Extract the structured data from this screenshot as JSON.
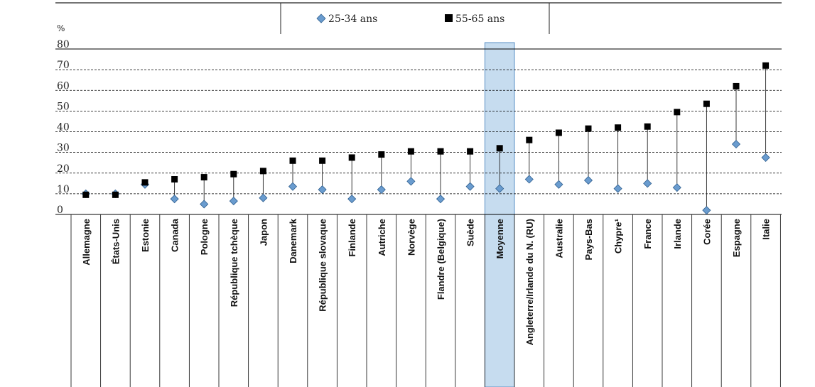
{
  "chart_data": {
    "type": "scatter",
    "ylabel": "%",
    "ylim": [
      0,
      80
    ],
    "yticks": [
      0,
      10,
      20,
      30,
      40,
      50,
      60,
      70,
      80
    ],
    "grid": "dashed horizontal",
    "legend_position": "top-center",
    "highlight_category": "Moyenne",
    "categories": [
      "Allemagne",
      "États-Unis",
      "Estonie",
      "Canada",
      "Pologne",
      "République tchèque",
      "Japon",
      "Danemark",
      "République slovaque",
      "Finlande",
      "Autriche",
      "Norvège",
      "Flandre (Belgique)",
      "Suède",
      "Moyenne",
      "Angleterre/Irlande du N. (RU)",
      "Australie",
      "Pays-Bas",
      "Chypre¹",
      "France",
      "Irlande",
      "Corée",
      "Espagne",
      "Italie"
    ],
    "series": [
      {
        "name": "25-34 ans",
        "marker": "diamond",
        "color": "#6a9ccf",
        "values": [
          10,
          10,
          14.5,
          7.5,
          5,
          6.5,
          8,
          13.5,
          12,
          7.5,
          12,
          16,
          7.5,
          13.5,
          12.5,
          17,
          14.5,
          16.5,
          12.5,
          15,
          13,
          2,
          34,
          27.5
        ]
      },
      {
        "name": "55-65 ans",
        "marker": "square",
        "color": "#000000",
        "values": [
          9.5,
          9.5,
          15.5,
          17,
          18,
          19.5,
          21,
          26,
          26,
          27.5,
          29,
          30.5,
          30.5,
          30.5,
          32,
          36,
          39.5,
          41.5,
          42,
          42.5,
          49.5,
          53.5,
          62,
          72
        ]
      }
    ]
  },
  "colors": {
    "highlight_fill": "#c6dcef",
    "highlight_stroke": "#5a8fc4",
    "grid": "#000000"
  }
}
